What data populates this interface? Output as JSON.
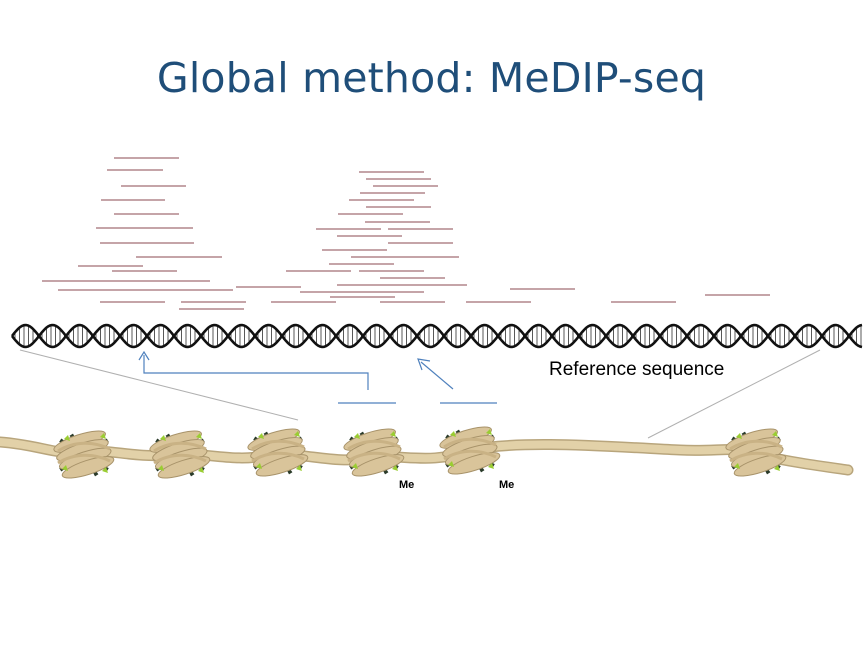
{
  "slide": {
    "title": "Global method: MeDIP-seq",
    "reference_label": "Reference sequence",
    "methyl_marks": [
      "Me",
      "Me"
    ]
  },
  "colors": {
    "title": "#1f4e79",
    "read_line": "#8b4a52",
    "captured_read": "#4f81bd",
    "arrow": "#4f81bd",
    "helix": "#111111",
    "chromatin_fiber": "#e2d1a8",
    "histone": "#d9c49a",
    "leaf_dark": "#2a3b2a",
    "leaf_light": "#9acd32",
    "zoom_line": "#b0b0b0"
  },
  "icons": [
    "nucleosome-icon",
    "dna-double-helix"
  ]
}
